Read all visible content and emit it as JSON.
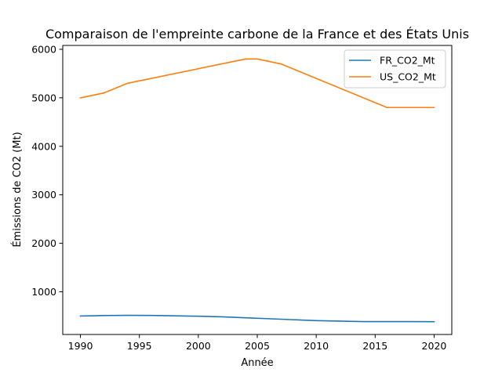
{
  "chart_data": {
    "type": "line",
    "title": "Comparaison de l'empreinte carbone de la France et des États Unis",
    "xlabel": "Année",
    "ylabel": "Émissions de CO2 (Mt)",
    "xlim": [
      1988.5,
      2021.5
    ],
    "ylim": [
      120,
      6080
    ],
    "x_ticks": [
      1990,
      1995,
      2000,
      2005,
      2010,
      2015,
      2020
    ],
    "y_ticks": [
      1000,
      2000,
      3000,
      4000,
      5000,
      6000
    ],
    "grid": false,
    "legend_position": "top-right",
    "series": [
      {
        "name": "FR_CO2_Mt",
        "color": "#1f77b4",
        "points": [
          [
            1990,
            500
          ],
          [
            1992,
            510
          ],
          [
            1994,
            515
          ],
          [
            1996,
            512
          ],
          [
            1998,
            505
          ],
          [
            2000,
            497
          ],
          [
            2002,
            485
          ],
          [
            2004,
            465
          ],
          [
            2006,
            445
          ],
          [
            2008,
            425
          ],
          [
            2010,
            405
          ],
          [
            2012,
            395
          ],
          [
            2014,
            385
          ],
          [
            2016,
            385
          ],
          [
            2018,
            385
          ],
          [
            2020,
            383
          ]
        ]
      },
      {
        "name": "US_CO2_Mt",
        "color": "#ff7f0e",
        "points": [
          [
            1990,
            5000
          ],
          [
            1992,
            5100
          ],
          [
            1994,
            5300
          ],
          [
            2004,
            5800
          ],
          [
            2005,
            5800
          ],
          [
            2007,
            5700
          ],
          [
            2016,
            4800
          ],
          [
            2020,
            4800
          ]
        ]
      }
    ]
  }
}
